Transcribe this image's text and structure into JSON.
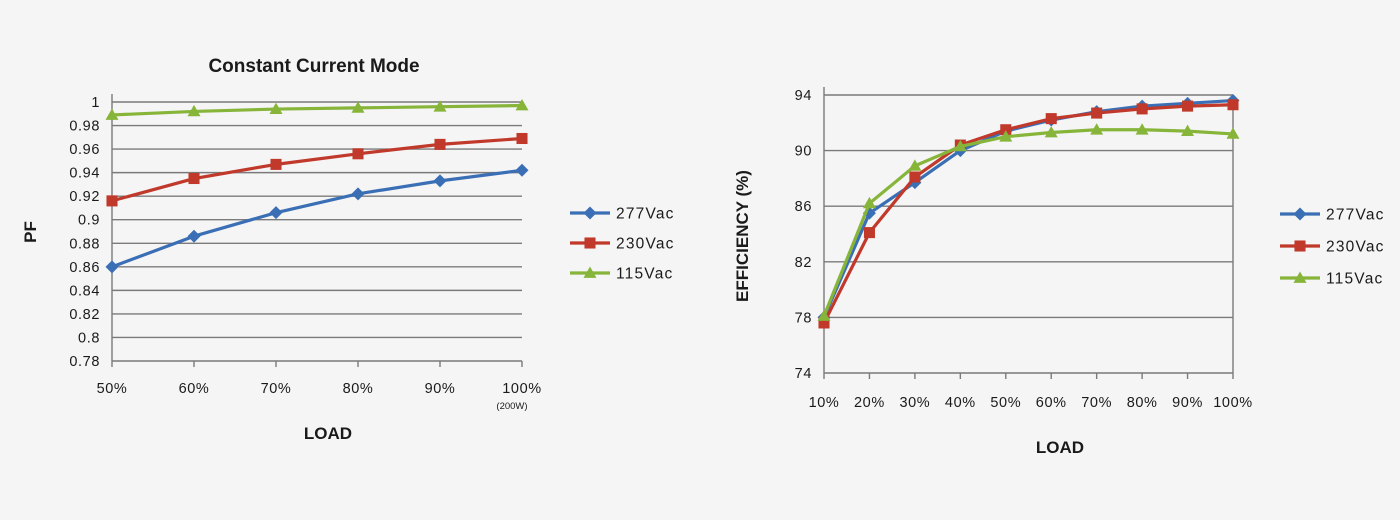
{
  "chart_data": [
    {
      "type": "line",
      "title": "Constant Current Mode",
      "xlabel": "LOAD",
      "ylabel": "PF",
      "categories": [
        "50%",
        "60%",
        "70%",
        "80%",
        "90%",
        "100%"
      ],
      "x_note": "(200W)",
      "ylim": [
        0.78,
        1.0
      ],
      "yticks": [
        "0.78",
        "0.8",
        "0.82",
        "0.84",
        "0.86",
        "0.88",
        "0.9",
        "0.92",
        "0.94",
        "0.96",
        "0.98",
        "1"
      ],
      "grid": true,
      "legend_position": "right",
      "series": [
        {
          "name": "277Vac",
          "color": "#3a6fb5",
          "marker": "diamond",
          "values": [
            0.86,
            0.886,
            0.906,
            0.922,
            0.933,
            0.942
          ]
        },
        {
          "name": "230Vac",
          "color": "#c0392b",
          "marker": "square",
          "values": [
            0.916,
            0.935,
            0.947,
            0.956,
            0.964,
            0.969
          ]
        },
        {
          "name": "115Vac",
          "color": "#86b53a",
          "marker": "triangle",
          "values": [
            0.989,
            0.992,
            0.994,
            0.995,
            0.996,
            0.997
          ]
        }
      ]
    },
    {
      "type": "line",
      "title": "",
      "xlabel": "LOAD",
      "ylabel": "EFFICIENCY (%)",
      "categories": [
        "10%",
        "20%",
        "30%",
        "40%",
        "50%",
        "60%",
        "70%",
        "80%",
        "90%",
        "100%"
      ],
      "ylim": [
        74,
        94
      ],
      "yticks": [
        "74",
        "78",
        "82",
        "86",
        "90",
        "94"
      ],
      "grid": true,
      "legend_position": "right",
      "series": [
        {
          "name": "277Vac",
          "color": "#3a6fb5",
          "marker": "diamond",
          "values": [
            78.0,
            85.5,
            87.7,
            90.0,
            91.4,
            92.2,
            92.8,
            93.2,
            93.4,
            93.6
          ]
        },
        {
          "name": "230Vac",
          "color": "#c0392b",
          "marker": "square",
          "values": [
            77.6,
            84.1,
            88.1,
            90.4,
            91.5,
            92.3,
            92.7,
            93.0,
            93.2,
            93.3
          ]
        },
        {
          "name": "115Vac",
          "color": "#86b53a",
          "marker": "triangle",
          "values": [
            78.1,
            86.2,
            88.9,
            90.3,
            91.0,
            91.3,
            91.5,
            91.5,
            91.4,
            91.2
          ]
        }
      ]
    }
  ]
}
